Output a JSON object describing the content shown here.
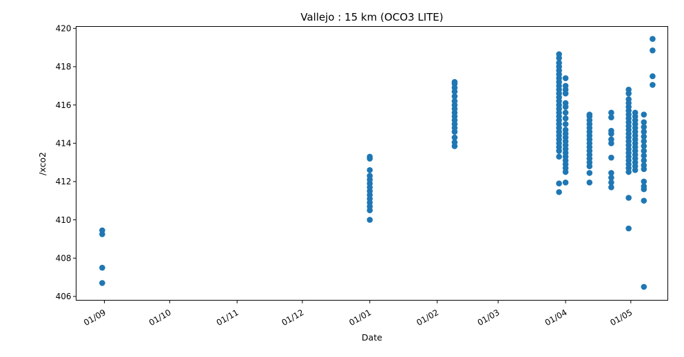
{
  "chart_data": {
    "type": "scatter",
    "title": "Vallejo : 15 km (OCO3 LITE)",
    "xlabel": "Date",
    "ylabel": "/xco2",
    "xlim": [
      "2020-08-19",
      "2021-05-18"
    ],
    "ylim": [
      405.8,
      420.1
    ],
    "x_ticks": [
      {
        "label": "01/09",
        "date": "2020-09-01"
      },
      {
        "label": "01/10",
        "date": "2020-10-01"
      },
      {
        "label": "01/11",
        "date": "2020-11-01"
      },
      {
        "label": "01/12",
        "date": "2020-12-01"
      },
      {
        "label": "01/01",
        "date": "2021-01-01"
      },
      {
        "label": "01/02",
        "date": "2021-02-01"
      },
      {
        "label": "01/03",
        "date": "2021-03-01"
      },
      {
        "label": "01/04",
        "date": "2021-04-01"
      },
      {
        "label": "01/05",
        "date": "2021-05-01"
      }
    ],
    "y_ticks": [
      406,
      408,
      410,
      412,
      414,
      416,
      418,
      420
    ],
    "grid": false,
    "marker_color": "#1f77b4",
    "series": [
      {
        "groups": [
          {
            "date": "2020-08-31",
            "values": [
              406.7,
              407.5,
              409.25,
              409.45
            ]
          },
          {
            "date": "2021-01-01",
            "values": [
              410.0,
              410.5,
              410.7,
              410.9,
              411.1,
              411.3,
              411.5,
              411.7,
              411.9,
              412.1,
              412.3,
              412.6,
              413.2,
              413.3
            ]
          },
          {
            "date": "2021-02-09",
            "values": [
              413.85,
              414.05,
              414.3,
              414.6,
              414.8,
              415.0,
              415.2,
              415.4,
              415.6,
              415.8,
              416.0,
              416.2,
              416.45,
              416.7,
              416.9,
              417.1,
              417.2
            ]
          },
          {
            "date": "2021-03-29",
            "values": [
              411.45,
              411.9,
              413.3,
              413.6,
              413.8,
              414.0,
              414.2,
              414.4,
              414.6,
              414.8,
              415.0,
              415.2,
              415.4,
              415.6,
              415.8,
              416.0,
              416.2,
              416.4,
              416.6,
              416.8,
              417.0,
              417.2,
              417.4,
              417.6,
              417.8,
              418.0,
              418.2,
              418.45,
              418.65
            ]
          },
          {
            "date": "2021-04-01",
            "values": [
              411.95,
              412.5,
              412.7,
              412.9,
              413.1,
              413.3,
              413.5,
              413.7,
              413.9,
              414.1,
              414.3,
              414.5,
              414.7,
              415.0,
              415.3,
              415.6,
              415.9,
              416.1,
              416.6,
              416.8,
              417.0,
              417.4
            ]
          },
          {
            "date": "2021-04-12",
            "values": [
              411.95,
              412.45,
              412.8,
              413.0,
              413.2,
              413.4,
              413.6,
              413.8,
              414.0,
              414.2,
              414.4,
              414.6,
              414.8,
              415.0,
              415.2,
              415.4,
              415.5
            ]
          },
          {
            "date": "2021-04-22",
            "values": [
              411.7,
              411.95,
              412.2,
              412.45,
              413.25,
              414.0,
              414.2,
              414.5,
              414.65,
              415.35,
              415.6
            ]
          },
          {
            "date": "2021-04-30",
            "values": [
              409.55,
              411.15,
              412.5,
              412.7,
              412.9,
              413.1,
              413.3,
              413.5,
              413.7,
              413.9,
              414.1,
              414.3,
              414.5,
              414.7,
              414.9,
              415.1,
              415.3,
              415.5,
              415.7,
              415.9,
              416.1,
              416.3,
              416.6,
              416.8
            ]
          },
          {
            "date": "2021-05-03",
            "values": [
              412.6,
              412.8,
              413.0,
              413.2,
              413.4,
              413.6,
              413.8,
              414.0,
              414.2,
              414.4,
              414.6,
              414.8,
              415.0,
              415.2,
              415.4,
              415.6
            ]
          },
          {
            "date": "2021-05-07",
            "values": [
              406.5,
              411.0,
              411.6,
              411.75,
              412.0,
              412.65,
              412.85,
              413.1,
              413.35,
              413.6,
              413.85,
              414.1,
              414.35,
              414.6,
              414.85,
              415.1,
              415.5
            ]
          },
          {
            "date": "2021-05-11",
            "values": [
              417.05,
              417.5,
              418.85,
              419.45
            ]
          }
        ]
      }
    ]
  }
}
